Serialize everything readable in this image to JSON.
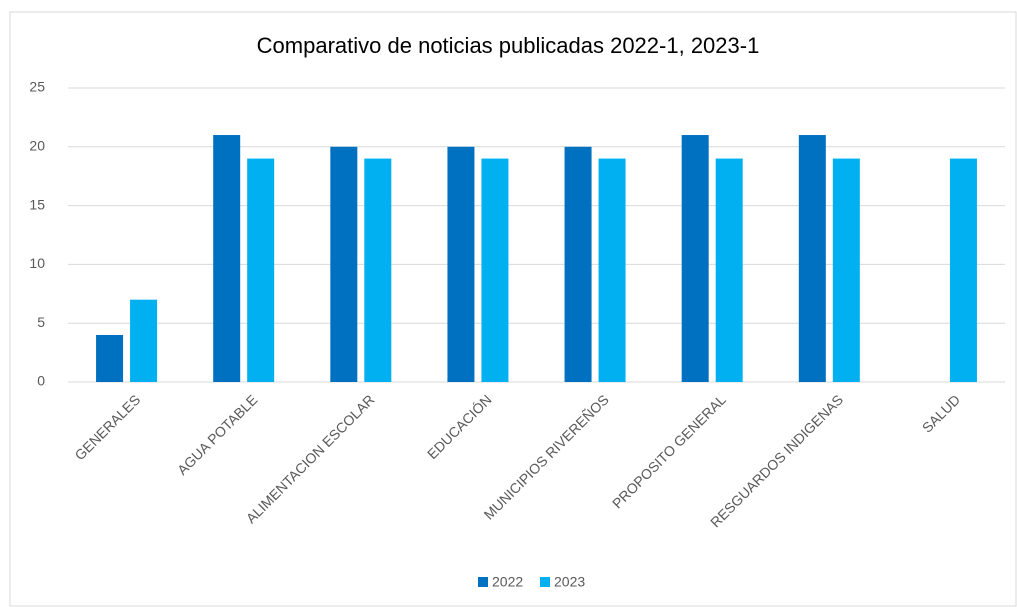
{
  "chart_data": {
    "type": "bar",
    "title": "Comparativo de noticias publicadas 2022-1, 2023-1",
    "categories": [
      "GENERALES",
      "AGUA POTABLE",
      "ALIMENTACION ESCOLAR",
      "EDUCACIÓN",
      "MUNICIPIOS RIVEREÑOS",
      "PROPOSITO GENERAL",
      "RESGUARDOS INDIGENAS",
      "SALUD"
    ],
    "series": [
      {
        "name": "2022",
        "color": "#0070c0",
        "values": [
          4,
          21,
          20,
          20,
          20,
          21,
          21,
          0
        ]
      },
      {
        "name": "2023",
        "color": "#00b0f0",
        "values": [
          7,
          19,
          19,
          19,
          19,
          19,
          19,
          19
        ]
      }
    ],
    "ylim": [
      0,
      25
    ],
    "yticks": [
      0,
      5,
      10,
      15,
      20,
      25
    ],
    "grid": true,
    "legend": "bottom"
  }
}
